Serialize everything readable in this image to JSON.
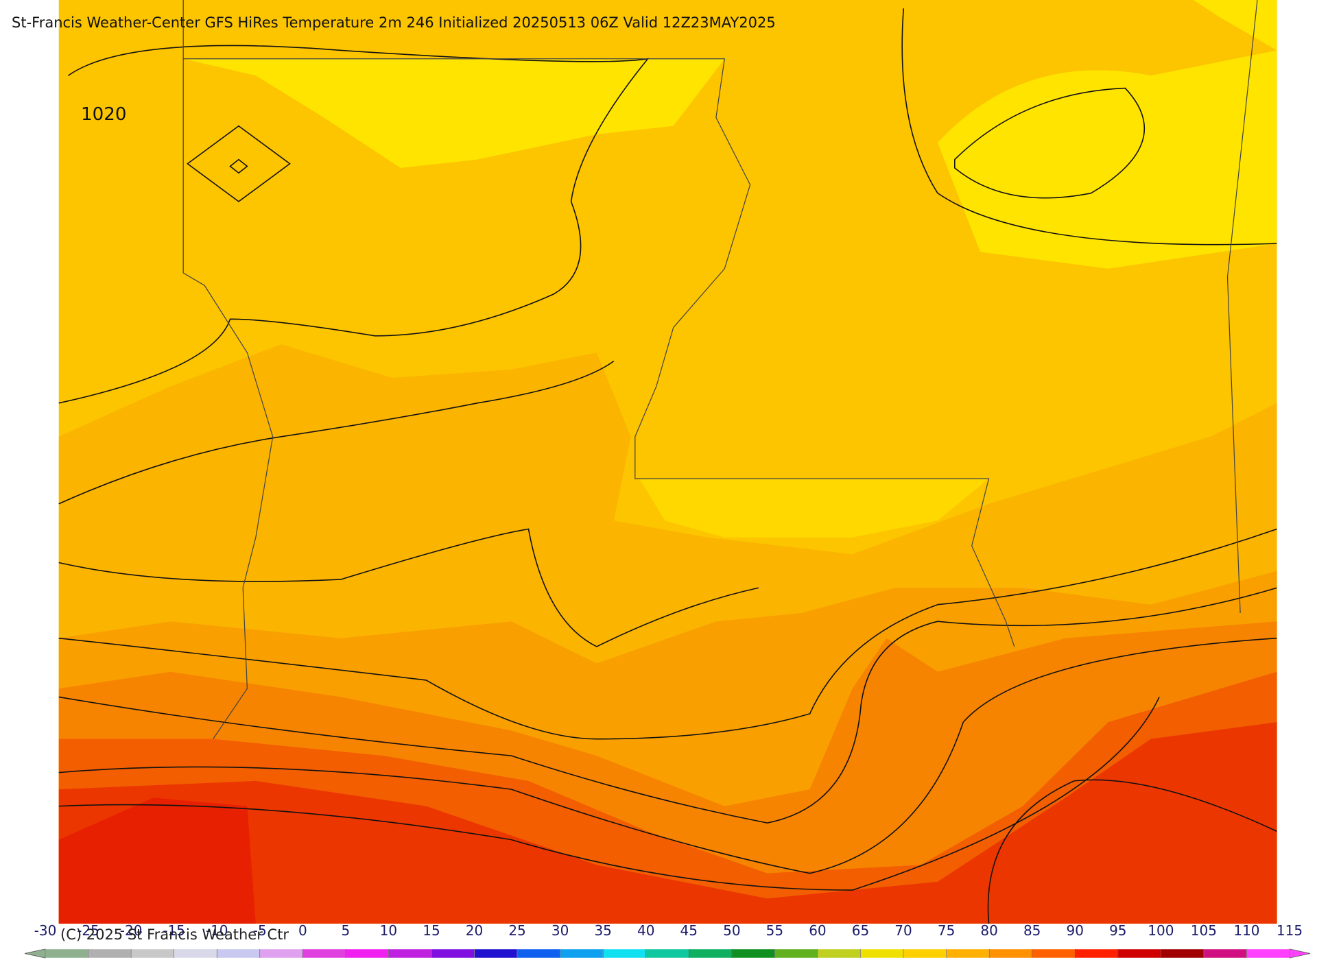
{
  "header": {
    "title": "St-Francis Weather-Center GFS HiRes Temperature 2m  246 Initialized 20250513 06Z Valid 12Z23MAY2025"
  },
  "map": {
    "contour_label": "1020"
  },
  "colorbar": {
    "ticks": [
      -30,
      -25,
      -20,
      -15,
      -10,
      -5,
      0,
      5,
      10,
      15,
      20,
      25,
      30,
      35,
      40,
      45,
      50,
      55,
      60,
      65,
      70,
      75,
      80,
      85,
      90,
      95,
      100,
      105,
      110,
      115
    ],
    "colors": [
      "#8fb08f",
      "#b0b0b0",
      "#c8c8c8",
      "#d8d8e8",
      "#c8c8f0",
      "#e0a0f0",
      "#e040e0",
      "#f020f0",
      "#c020e0",
      "#8010e0",
      "#2010d0",
      "#1060f0",
      "#10a0f0",
      "#10e0f0",
      "#10c8a0",
      "#10b060",
      "#109020",
      "#60b020",
      "#c0d020",
      "#f0e000",
      "#ffd000",
      "#ffb000",
      "#ff9000",
      "#ff6000",
      "#ff2000",
      "#d00000",
      "#a00000",
      "#d01080",
      "#ff40ff"
    ]
  },
  "footer": {
    "copyright": "(C) 2025 St Francis Weather Ctr"
  }
}
